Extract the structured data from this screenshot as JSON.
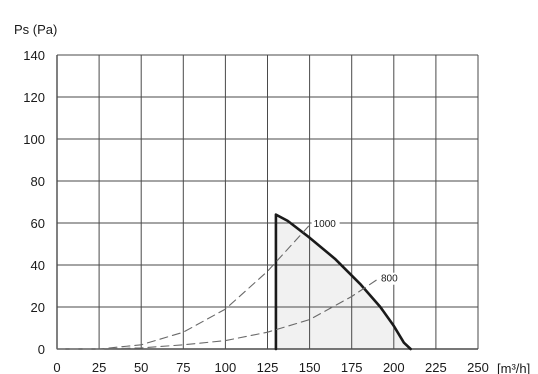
{
  "chart_data": {
    "type": "line",
    "ylabel": "Ps (Pa)",
    "xunit": "[m³/h]",
    "xlim": [
      0,
      250
    ],
    "ylim": [
      0,
      140
    ],
    "x_ticks": [
      0,
      25,
      50,
      75,
      100,
      125,
      150,
      175,
      200,
      225,
      250
    ],
    "y_ticks": [
      0,
      20,
      40,
      60,
      80,
      100,
      120,
      140
    ],
    "grid": true,
    "series": [
      {
        "name": "",
        "style": "solid-bold",
        "x": [
          130,
          130,
          137,
          150,
          165,
          180,
          192,
          200,
          206,
          210
        ],
        "y": [
          0,
          64,
          61,
          53,
          43,
          31,
          20,
          11,
          3,
          0
        ]
      },
      {
        "name": "1000",
        "style": "dashed",
        "x": [
          0,
          25,
          50,
          75,
          100,
          125,
          150
        ],
        "y": [
          0,
          0,
          2,
          8,
          19,
          37,
          59
        ]
      },
      {
        "name": "800",
        "style": "dashed",
        "x": [
          0,
          25,
          50,
          75,
          100,
          125,
          150,
          175,
          190
        ],
        "y": [
          0,
          0,
          0.5,
          2,
          4,
          8,
          14,
          25,
          33
        ]
      }
    ],
    "colors": {
      "grid": "#4a4a4a",
      "curve": "#1a1a1a",
      "dashed": "#6a6a6a",
      "shade": "#f1f1f1"
    }
  }
}
